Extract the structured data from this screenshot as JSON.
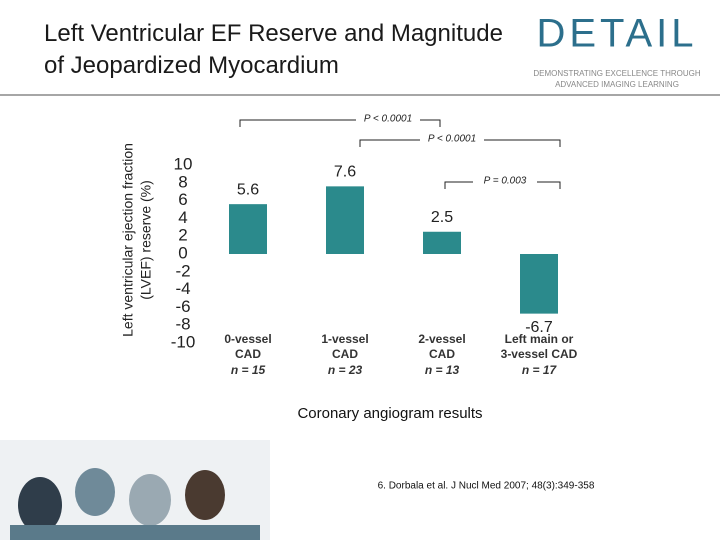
{
  "header": {
    "title": "Left Ventricular EF Reserve and Magnitude of Jeopardized Myocardium"
  },
  "logo": {
    "name": "DETAIL",
    "tagline": [
      "DEMONSTRATING EXCELLENCE THROUGH",
      "ADVANCED IMAGING LEARNING"
    ]
  },
  "chart_data": {
    "type": "bar",
    "ylabel": [
      "Left ventricular ejection fraction",
      "(LVEF) reserve (%)"
    ],
    "xlabel": "Coronary angiogram results",
    "categories": [
      [
        "0-vessel",
        "CAD"
      ],
      [
        "1-vessel",
        "CAD"
      ],
      [
        "2-vessel",
        "CAD"
      ],
      [
        "Left main or",
        "3-vessel CAD"
      ]
    ],
    "group_sizes": [
      "n = 15",
      "n = 23",
      "n = 13",
      "n = 17"
    ],
    "values": [
      5.6,
      7.6,
      2.5,
      -6.7
    ],
    "color": "#2b8a8c",
    "ylim": [
      -10,
      10
    ],
    "yticks": [
      10,
      8,
      6,
      4,
      2,
      0,
      -2,
      -4,
      -6,
      -8,
      -10
    ],
    "annotations": [
      "P < 0.0001",
      "P < 0.0001",
      "P = 0.003"
    ]
  },
  "footnote": "6. Dorbala et al. J Nucl Med 2007; 48(3):349-358"
}
